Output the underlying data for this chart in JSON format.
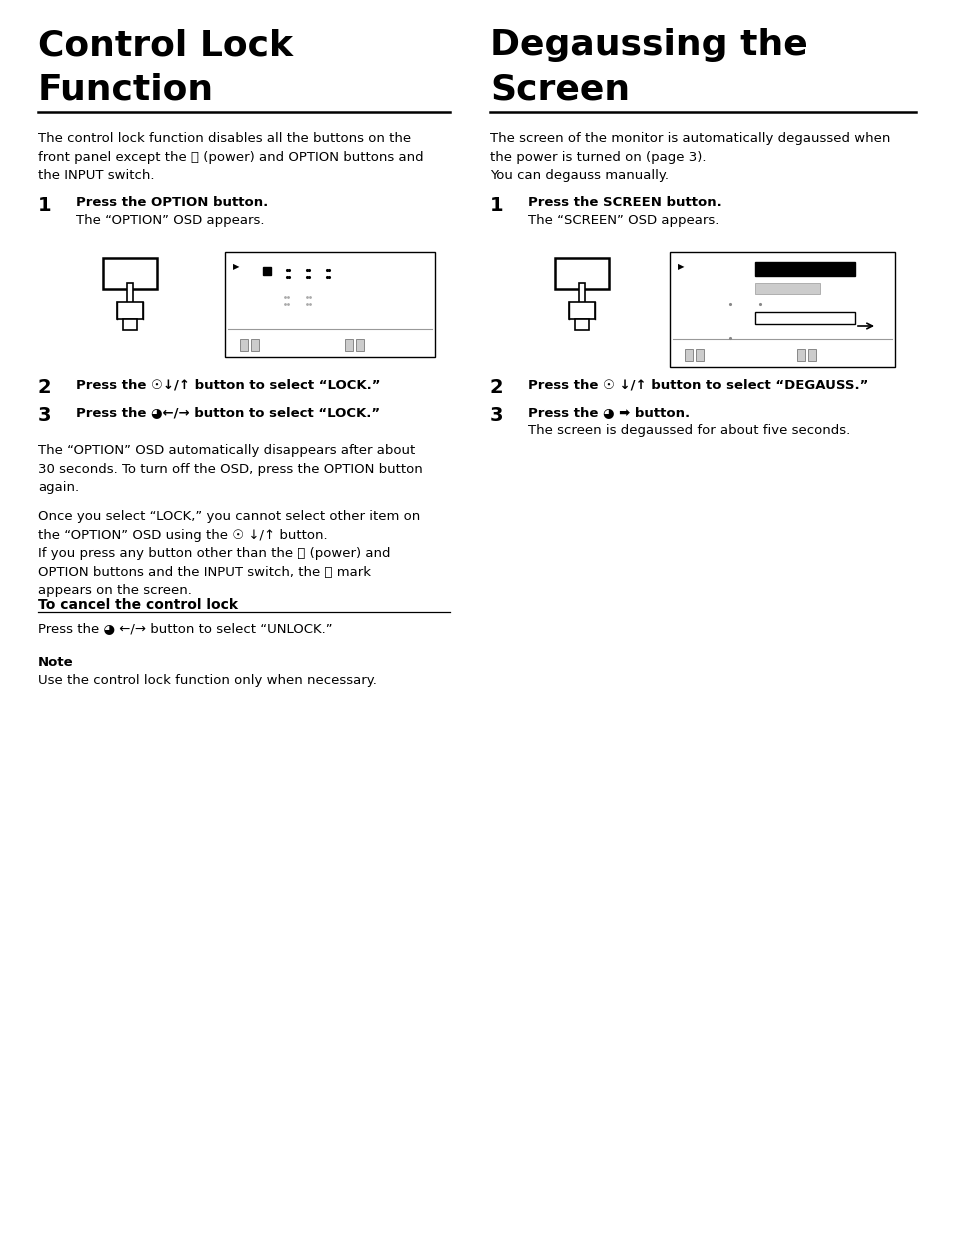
{
  "bg_color": "#ffffff",
  "figsize": [
    9.54,
    12.35
  ],
  "dpi": 100,
  "left": {
    "title_line1": "Control Lock",
    "title_line2": "Function",
    "intro": "The control lock function disables all the buttons on the\nfront panel except the ⏻ (power) and OPTION buttons and\nthe INPUT switch.",
    "s1_bold": "Press the OPTION button.",
    "s1_text": "The “OPTION” OSD appears.",
    "s2_bold": "Press the ☉↓/↑ button to select “LOCK.”",
    "s3_bold": "Press the ◕←/→ button to select “LOCK.”",
    "para1": "The “OPTION” OSD automatically disappears after about\n30 seconds. To turn off the OSD, press the OPTION button\nagain.",
    "para2": "Once you select “LOCK,” you cannot select other item on\nthe “OPTION” OSD using the ☉ ↓/↑ button.\nIf you press any button other than the ⏻ (power) and\nOPTION buttons and the INPUT switch, the ⚿ mark\nappears on the screen.",
    "cancel_head": "To cancel the control lock",
    "cancel_text": "Press the ◕ ←/→ button to select “UNLOCK.”",
    "note_head": "Note",
    "note_text": "Use the control lock function only when necessary."
  },
  "right": {
    "title_line1": "Degaussing the",
    "title_line2": "Screen",
    "intro": "The screen of the monitor is automatically degaussed when\nthe power is turned on (page 3).\nYou can degauss manually.",
    "s1_bold": "Press the SCREEN button.",
    "s1_text": "The “SCREEN” OSD appears.",
    "s2_bold": "Press the ☉ ↓/↑ button to select “DEGAUSS.”",
    "s3_bold": "Press the ◕ ➡ button.",
    "s3_text": "The screen is degaussed for about five seconds."
  }
}
